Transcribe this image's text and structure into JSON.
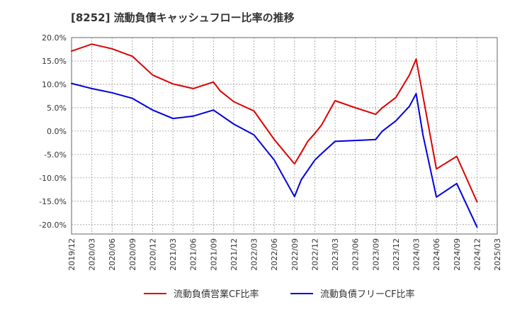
{
  "chart_data": {
    "type": "line",
    "title": "[8252]  流動負債キャッシュフロー比率の推移",
    "xlabel": "",
    "ylabel": "",
    "ylim": [
      -22,
      20
    ],
    "yticks": [
      20,
      15,
      10,
      5,
      0,
      -5,
      -10,
      -15,
      -20
    ],
    "ytick_labels": [
      "20.0%",
      "15.0%",
      "10.0%",
      "5.0%",
      "0.0%",
      "-5.0%",
      "-10.0%",
      "-15.0%",
      "-20.0%"
    ],
    "xticks": [
      "2019/12",
      "2020/03",
      "2020/06",
      "2020/09",
      "2020/12",
      "2021/03",
      "2021/06",
      "2021/09",
      "2021/12",
      "2022/03",
      "2022/06",
      "2022/09",
      "2022/12",
      "2023/03",
      "2023/06",
      "2023/09",
      "2023/12",
      "2024/03",
      "2024/06",
      "2024/09",
      "2024/12",
      "2025/03"
    ],
    "grid": true,
    "legend_position": "bottom",
    "series": [
      {
        "name": "流動負債営業CF比率",
        "color": "#dd0000",
        "points": [
          [
            "2019/12",
            17.1
          ],
          [
            "2020/03",
            18.6
          ],
          [
            "2020/06",
            17.6
          ],
          [
            "2020/09",
            16.0
          ],
          [
            "2020/12",
            12.0
          ],
          [
            "2021/03",
            10.1
          ],
          [
            "2021/06",
            9.1
          ],
          [
            "2021/09",
            10.5
          ],
          [
            "2021/10",
            8.6
          ],
          [
            "2021/12",
            6.3
          ],
          [
            "2022/03",
            4.3
          ],
          [
            "2022/06",
            -1.8
          ],
          [
            "2022/09",
            -7.0
          ],
          [
            "2022/10",
            -4.6
          ],
          [
            "2022/11",
            -2.1
          ],
          [
            "2022/12",
            -0.5
          ],
          [
            "2023/01",
            1.3
          ],
          [
            "2023/03",
            6.5
          ],
          [
            "2023/06",
            5.0
          ],
          [
            "2023/09",
            3.6
          ],
          [
            "2023/10",
            5.0
          ],
          [
            "2023/12",
            7.2
          ],
          [
            "2024/02",
            12.0
          ],
          [
            "2024/03",
            15.4
          ],
          [
            "2024/04",
            7.5
          ],
          [
            "2024/06",
            -8.1
          ],
          [
            "2024/09",
            -5.4
          ],
          [
            "2024/12",
            -15.1
          ]
        ]
      },
      {
        "name": "流動負債フリーCF比率",
        "color": "#0000dd",
        "points": [
          [
            "2019/12",
            10.2
          ],
          [
            "2020/03",
            9.1
          ],
          [
            "2020/06",
            8.2
          ],
          [
            "2020/09",
            7.0
          ],
          [
            "2020/12",
            4.5
          ],
          [
            "2021/03",
            2.7
          ],
          [
            "2021/06",
            3.2
          ],
          [
            "2021/09",
            4.5
          ],
          [
            "2021/12",
            1.5
          ],
          [
            "2022/03",
            -0.8
          ],
          [
            "2022/06",
            -6.2
          ],
          [
            "2022/09",
            -14.0
          ],
          [
            "2022/10",
            -10.4
          ],
          [
            "2022/12",
            -6.2
          ],
          [
            "2023/01",
            -4.8
          ],
          [
            "2023/03",
            -2.2
          ],
          [
            "2023/06",
            -2.0
          ],
          [
            "2023/09",
            -1.8
          ],
          [
            "2023/10",
            0.0
          ],
          [
            "2023/12",
            2.2
          ],
          [
            "2024/02",
            5.3
          ],
          [
            "2024/03",
            8.0
          ],
          [
            "2024/04",
            -0.8
          ],
          [
            "2024/06",
            -14.1
          ],
          [
            "2024/09",
            -11.2
          ],
          [
            "2024/12",
            -20.5
          ]
        ]
      }
    ]
  }
}
